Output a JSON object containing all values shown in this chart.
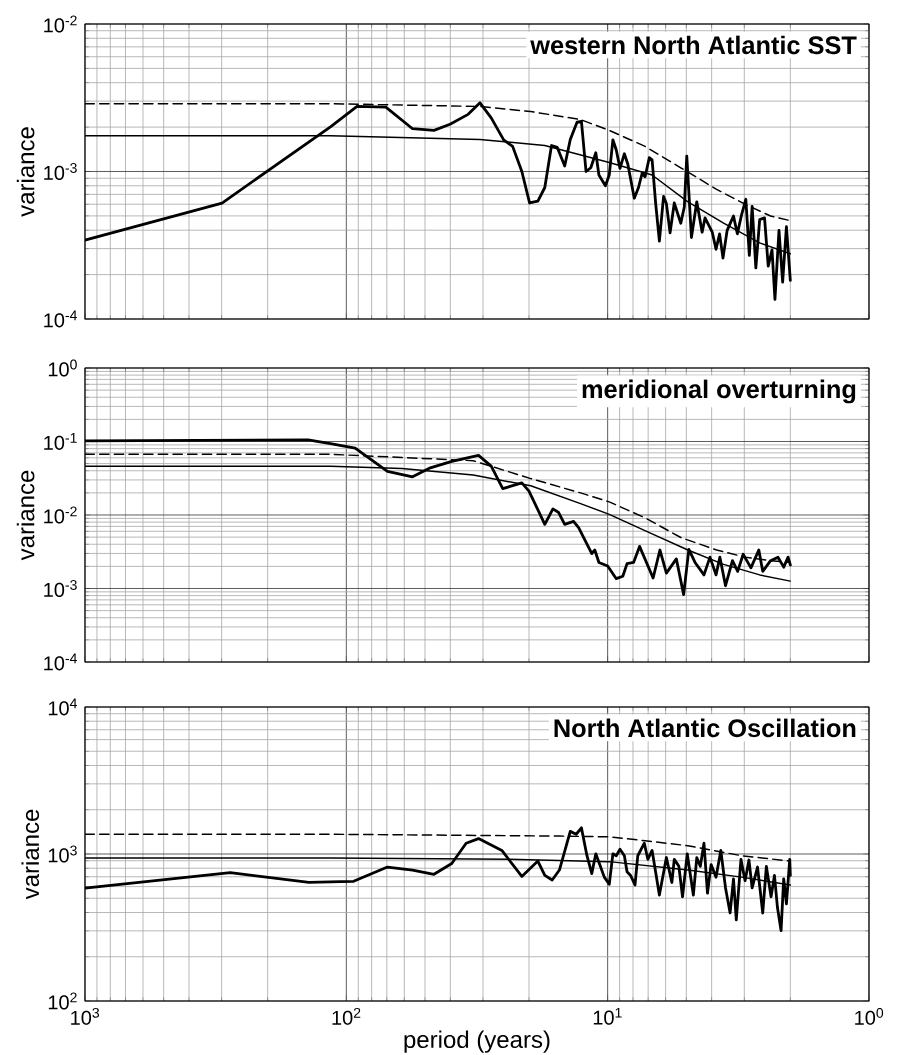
{
  "chart_data": [
    {
      "type": "line",
      "title": "western North Atlantic SST",
      "ylabel": "variance",
      "log": "xy",
      "grid": true,
      "tick_labels": "y",
      "xlim": [
        1000,
        1
      ],
      "xticks": [
        1000,
        100,
        10,
        1
      ],
      "ylim": [
        0.0001,
        0.01
      ],
      "yticks": [
        {
          "value": 0.0001,
          "label": "10$^{-4}$"
        },
        {
          "value": 0.001,
          "label": "10$^{-3}$"
        },
        {
          "value": 0.01,
          "label": "10$^{-2}$"
        }
      ],
      "series": [
        {
          "color": "#000000",
          "line_style": "solid",
          "x": [
            1000,
            299,
            115,
            91,
            70.6,
            55.8,
            46.2,
            40.1,
            34.2,
            30.8,
            27.9,
            25.0,
            23.1,
            21.3,
            19.9,
            18.5,
            17.4,
            16.4,
            15.6,
            14.6,
            13.9,
            13.1,
            12.6,
            12.1,
            11.6,
            11.1,
            10.8,
            10.2,
            9.86,
            9.55,
            9.27,
            8.97,
            8.63,
            8.37,
            7.91,
            7.62,
            7.38,
            7.19,
            6.93,
            6.76,
            6.55,
            6.34,
            6.11,
            5.96,
            5.77,
            5.56,
            5.25,
            5.09,
            4.98,
            4.78,
            4.56,
            4.35,
            4.24,
            3.98,
            3.85,
            3.73,
            3.62,
            3.49,
            3.3,
            3.19,
            3.07,
            2.96,
            2.87,
            2.8,
            2.71,
            2.62,
            2.51,
            2.43,
            2.35,
            2.29,
            2.21,
            2.14,
            2.07,
            2.03,
            2
          ],
          "values": [
            0.000343,
            0.000611,
            0.00201,
            0.00276,
            0.00273,
            0.00195,
            0.0019,
            0.00209,
            0.00244,
            0.00292,
            0.00231,
            0.00164,
            0.00148,
            0.001,
            0.000612,
            0.00063,
            0.000779,
            0.0015,
            0.00146,
            0.00109,
            0.00165,
            0.00216,
            0.00219,
            0.001,
            0.00106,
            0.00134,
            0.000947,
            0.000801,
            0.000947,
            0.00164,
            0.0014,
            0.00105,
            0.00132,
            0.00112,
            0.000659,
            0.000779,
            0.000973,
            0.000921,
            0.00124,
            0.0012,
            0.000606,
            0.000337,
            0.000678,
            0.000606,
            0.000384,
            0.000612,
            0.000446,
            0.000574,
            0.00127,
            0.000357,
            0.000623,
            0.000388,
            0.000485,
            0.000388,
            0.000297,
            0.000378,
            0.000259,
            0.000399,
            0.000499,
            0.000378,
            0.000513,
            0.000648,
            0.00027,
            0.00058,
            0.000222,
            0.000472,
            0.000485,
            0.000228,
            0.000294,
            0.000136,
            0.000399,
            0.000178,
            0.000422,
            0.000263,
            0.000183
          ]
        },
        {
          "color": "#000000",
          "line_style": "solid",
          "x": [
            1000,
            115,
            30.8,
            17.4,
            9.86,
            6.76,
            4.93,
            3.6,
            2.62,
            2
          ],
          "values": [
            0.00175,
            0.00175,
            0.00165,
            0.0015,
            0.00115,
            0.000947,
            0.000623,
            0.000446,
            0.000328,
            0.000277
          ]
        },
        {
          "color": "#000000",
          "line_style": "dashed",
          "x": [
            1000,
            115,
            30.8,
            19.7,
            12.7,
            9.86,
            7.19,
            5.25,
            3.83,
            2.98,
            2.38,
            2
          ],
          "values": [
            0.00288,
            0.00288,
            0.00276,
            0.00255,
            0.00225,
            0.0019,
            0.00148,
            0.00106,
            0.000757,
            0.0006,
            0.000499,
            0.000464
          ]
        }
      ]
    },
    {
      "type": "line",
      "title": "meridional overturning",
      "ylabel": "variance",
      "log": "xy",
      "grid": true,
      "tick_labels": "y",
      "xlim": [
        1000,
        1
      ],
      "xticks": [
        1000,
        100,
        10,
        1
      ],
      "ylim": [
        0.0001,
        1
      ],
      "yticks": [
        {
          "value": 0.0001,
          "label": "10$^{-4}$"
        },
        {
          "value": 0.001,
          "label": "10$^{-3}$"
        },
        {
          "value": 0.01,
          "label": "10$^{-2}$"
        },
        {
          "value": 0.1,
          "label": "10$^{-1}$"
        },
        {
          "value": 1,
          "label": "10$^{0}$"
        }
      ],
      "series": [
        {
          "color": "#000000",
          "line_style": "solid",
          "x": [
            1000,
            140,
            115,
            92.5,
            69.6,
            55.8,
            47.7,
            39.5,
            31.2,
            27.9,
            25.2,
            21.3,
            20.0,
            17.4,
            16.2,
            15.4,
            14.6,
            13.5,
            12.9,
            11.5,
            11.2,
            10.8,
            10.0,
            9.27,
            8.75,
            8.43,
            7.96,
            7.55,
            6.7,
            6.31,
            5.96,
            5.46,
            5.12,
            4.89,
            4.63,
            4.28,
            4.06,
            3.85,
            3.72,
            3.54,
            3.33,
            3.18,
            3.03,
            2.83,
            2.64,
            2.55,
            2.38,
            2.23,
            2.12,
            2.04,
            2
          ],
          "values": [
            0.102,
            0.105,
            0.0936,
            0.0811,
            0.0392,
            0.0331,
            0.0438,
            0.0536,
            0.0647,
            0.0463,
            0.0229,
            0.0273,
            0.0211,
            0.00747,
            0.0121,
            0.0108,
            0.00747,
            0.00818,
            0.00668,
            0.00298,
            0.00334,
            0.00226,
            0.00202,
            0.00136,
            0.00147,
            0.00218,
            0.00226,
            0.00374,
            0.00139,
            0.00334,
            0.00162,
            0.00253,
            0.000826,
            0.00341,
            0.00226,
            0.00153,
            0.00267,
            0.00153,
            0.00267,
            0.00109,
            0.00239,
            0.00171,
            0.00292,
            0.00191,
            0.00334,
            0.00171,
            0.00239,
            0.00267,
            0.00195,
            0.00267,
            0.00209
          ]
        },
        {
          "color": "#000000",
          "line_style": "solid",
          "x": [
            1000,
            115,
            61.3,
            32.7,
            19.7,
            12.7,
            9.86,
            6.76,
            4.93,
            3.6,
            2.62,
            2
          ],
          "values": [
            0.046,
            0.046,
            0.0428,
            0.035,
            0.025,
            0.0143,
            0.0102,
            0.00553,
            0.00334,
            0.00213,
            0.00153,
            0.00126
          ]
        },
        {
          "color": "#000000",
          "line_style": "dashed",
          "x": [
            1000,
            115,
            32.7,
            19.7,
            12.7,
            9.86,
            7.19,
            5.25,
            3.83,
            2.98,
            2.38,
            2
          ],
          "values": [
            0.067,
            0.067,
            0.0548,
            0.0313,
            0.02,
            0.0151,
            0.00914,
            0.00494,
            0.00334,
            0.00267,
            0.00239,
            0.00226
          ]
        }
      ]
    },
    {
      "type": "line",
      "title": "North Atlantic Oscillation",
      "xlabel": "period (years)",
      "ylabel": "variance",
      "log": "xy",
      "grid": true,
      "xlim": [
        1000,
        1
      ],
      "xticks": [
        {
          "value": 1000,
          "label": "10$^{3}$"
        },
        {
          "value": 100,
          "label": "10$^{2}$"
        },
        {
          "value": 10,
          "label": "10$^{1}$"
        },
        {
          "value": 1,
          "label": "10$^{0}$"
        }
      ],
      "ylim": [
        100,
        10000
      ],
      "yticks": [
        {
          "value": 100,
          "label": "10$^{2}$"
        },
        {
          "value": 1000,
          "label": "10$^{3}$"
        },
        {
          "value": 10000,
          "label": "10$^{4}$"
        }
      ],
      "series": [
        {
          "color": "#000000",
          "line_style": "solid",
          "x": [
            1000,
            278,
            139,
            105,
            93.8,
            69.6,
            55.8,
            46.2,
            39.5,
            34.8,
            31.2,
            25.4,
            21.3,
            18.5,
            17.4,
            16.3,
            15.3,
            13.9,
            13.2,
            12.6,
            12.0,
            11.5,
            11.1,
            10.3,
            9.86,
            9.55,
            9.27,
            8.97,
            8.63,
            8.43,
            8.17,
            7.86,
            7.67,
            7.24,
            7.02,
            6.76,
            6.34,
            5.96,
            5.68,
            5.56,
            5.34,
            5.17,
            4.96,
            4.7,
            4.56,
            4.42,
            4.28,
            4.15,
            4.02,
            3.85,
            3.69,
            3.54,
            3.4,
            3.3,
            3.22,
            3.09,
            2.98,
            2.88,
            2.8,
            2.67,
            2.55,
            2.47,
            2.37,
            2.3,
            2.24,
            2.17,
            2.12,
            2.07,
            2.01,
            2
          ],
          "values": [
            585,
            746,
            642,
            648,
            652,
            815,
            778,
            728,
            861,
            1184,
            1273,
            1057,
            704,
            895,
            715,
            665,
            778,
            1425,
            1362,
            1506,
            973,
            736,
            1003,
            696,
            622,
            1003,
            973,
            1076,
            973,
            757,
            715,
            615,
            973,
            1184,
            920,
            1057,
            526,
            946,
            640,
            920,
            824,
            512,
            1003,
            526,
            946,
            824,
            1184,
            541,
            847,
            696,
            1057,
            588,
            397,
            677,
            356,
            920,
            658,
            910,
            588,
            815,
            397,
            824,
            512,
            715,
            432,
            301,
            677,
            458,
            920,
            715
          ]
        },
        {
          "color": "#000000",
          "line_style": "solid",
          "x": [
            1000,
            115,
            23.8,
            9.86,
            4.93,
            3.07,
            2
          ],
          "values": [
            940,
            940,
            920,
            887,
            778,
            696,
            615
          ]
        },
        {
          "color": "#000000",
          "line_style": "dashed",
          "x": [
            1000,
            115,
            15.3,
            9.86,
            7.19,
            4.93,
            3.07,
            2
          ],
          "values": [
            1362,
            1362,
            1324,
            1308,
            1231,
            1138,
            973,
            895
          ]
        }
      ]
    }
  ]
}
